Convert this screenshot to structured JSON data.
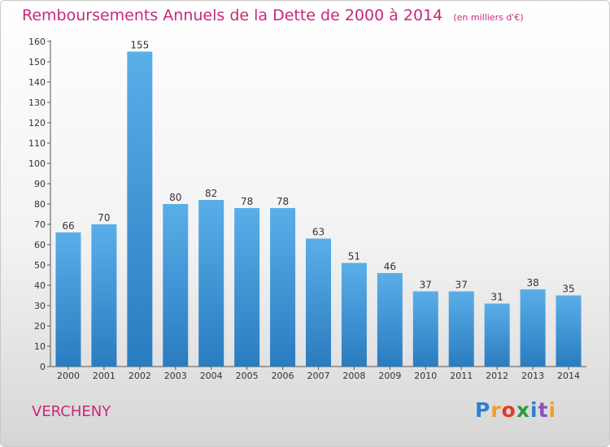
{
  "chart_data": {
    "type": "bar",
    "title": "Remboursements Annuels de la Dette de 2000 à 2014",
    "subtitle": "(en milliers d'€)",
    "categories": [
      "2000",
      "2001",
      "2002",
      "2003",
      "2004",
      "2005",
      "2006",
      "2007",
      "2008",
      "2009",
      "2010",
      "2011",
      "2012",
      "2013",
      "2014"
    ],
    "values": [
      66,
      70,
      155,
      80,
      82,
      78,
      78,
      63,
      51,
      46,
      37,
      37,
      31,
      38,
      35
    ],
    "ylim": [
      0,
      160
    ],
    "yticks": [
      0,
      10,
      20,
      30,
      40,
      50,
      60,
      70,
      80,
      90,
      100,
      110,
      120,
      130,
      140,
      150,
      160
    ],
    "grid": false,
    "bar_color": "#4a9fdf"
  },
  "location": "VERCHENY",
  "logo": [
    "P",
    "r",
    "o",
    "x",
    "i",
    "t",
    "i"
  ]
}
